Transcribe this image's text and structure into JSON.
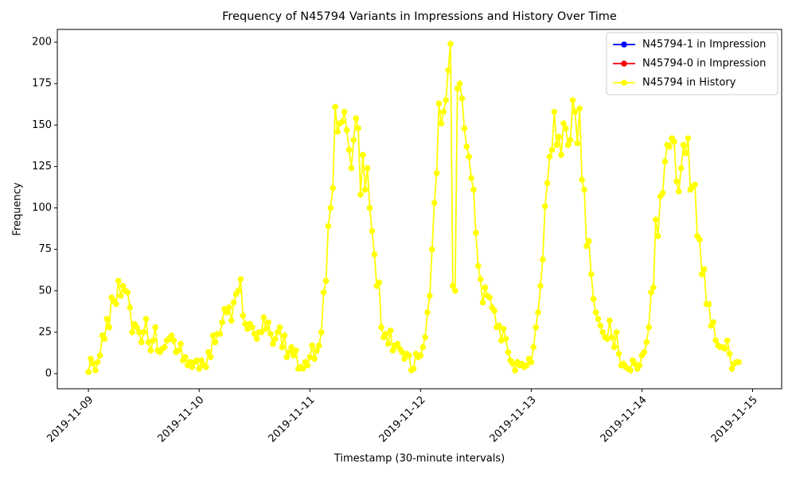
{
  "chart_data": {
    "type": "line",
    "title": "Frequency of N45794 Variants in Impressions and History Over Time",
    "xlabel": "Timestamp (30-minute intervals)",
    "ylabel": "Frequency",
    "xlim": [
      -13.5,
      300.6
    ],
    "xticks": [
      {
        "value": 0,
        "label": "2019-11-09"
      },
      {
        "value": 48,
        "label": "2019-11-10"
      },
      {
        "value": 96,
        "label": "2019-11-11"
      },
      {
        "value": 144,
        "label": "2019-11-12"
      },
      {
        "value": 192,
        "label": "2019-11-13"
      },
      {
        "value": 240,
        "label": "2019-11-14"
      },
      {
        "value": 288,
        "label": "2019-11-15"
      }
    ],
    "ylim": [
      -9.1,
      207.7
    ],
    "yticks": [
      0,
      25,
      50,
      75,
      100,
      125,
      150,
      175,
      200
    ],
    "legend": "upper right",
    "grid": false,
    "series": [
      {
        "name": "N45794-1 in Impression",
        "color": "#0000ff",
        "values": []
      },
      {
        "name": "N45794-0 in Impression",
        "color": "#ff0000",
        "values": []
      },
      {
        "name": "N45794 in History",
        "color": "#ffff00",
        "values": [
          1,
          9,
          6,
          2,
          7,
          11,
          23,
          21,
          33,
          28,
          46,
          44,
          42,
          56,
          47,
          53,
          50,
          49,
          40,
          25,
          30,
          28,
          25,
          19,
          25,
          33,
          19,
          14,
          20,
          28,
          14,
          13,
          15,
          16,
          20,
          21,
          23,
          20,
          13,
          14,
          18,
          8,
          10,
          5,
          7,
          4,
          7,
          8,
          3,
          8,
          5,
          4,
          13,
          10,
          23,
          19,
          24,
          24,
          31,
          39,
          37,
          40,
          32,
          43,
          48,
          50,
          57,
          35,
          30,
          27,
          30,
          28,
          24,
          21,
          25,
          25,
          34,
          27,
          31,
          24,
          18,
          21,
          25,
          28,
          16,
          23,
          10,
          13,
          16,
          11,
          14,
          3,
          4,
          3,
          7,
          5,
          10,
          17,
          9,
          14,
          17,
          25,
          49,
          56,
          89,
          100,
          112,
          161,
          146,
          151,
          152,
          158,
          147,
          135,
          124,
          141,
          154,
          148,
          108,
          132,
          111,
          124,
          100,
          86,
          72,
          53,
          55,
          28,
          22,
          24,
          18,
          26,
          14,
          17,
          18,
          15,
          13,
          9,
          12,
          11,
          2,
          3,
          12,
          10,
          11,
          16,
          22,
          37,
          47,
          75,
          103,
          121,
          163,
          151,
          158,
          165,
          183,
          199,
          53,
          50,
          172,
          175,
          166,
          148,
          137,
          131,
          118,
          111,
          85,
          65,
          57,
          43,
          52,
          47,
          46,
          40,
          38,
          28,
          29,
          20,
          27,
          21,
          13,
          8,
          6,
          2,
          7,
          5,
          6,
          4,
          5,
          9,
          7,
          16,
          28,
          37,
          53,
          69,
          101,
          115,
          131,
          135,
          158,
          138,
          143,
          132,
          151,
          148,
          138,
          141,
          165,
          158,
          139,
          160,
          117,
          111,
          77,
          80,
          60,
          45,
          37,
          33,
          29,
          25,
          22,
          21,
          32,
          22,
          16,
          25,
          12,
          5,
          6,
          4,
          3,
          2,
          8,
          6,
          3,
          5,
          11,
          13,
          19,
          28,
          49,
          52,
          93,
          83,
          107,
          109,
          128,
          138,
          137,
          142,
          140,
          116,
          110,
          124,
          138,
          133,
          142,
          111,
          113,
          114,
          83,
          81,
          60,
          63,
          42,
          42,
          29,
          31,
          20,
          17,
          16,
          16,
          15,
          20,
          12,
          3,
          6,
          7,
          7
        ]
      }
    ]
  }
}
